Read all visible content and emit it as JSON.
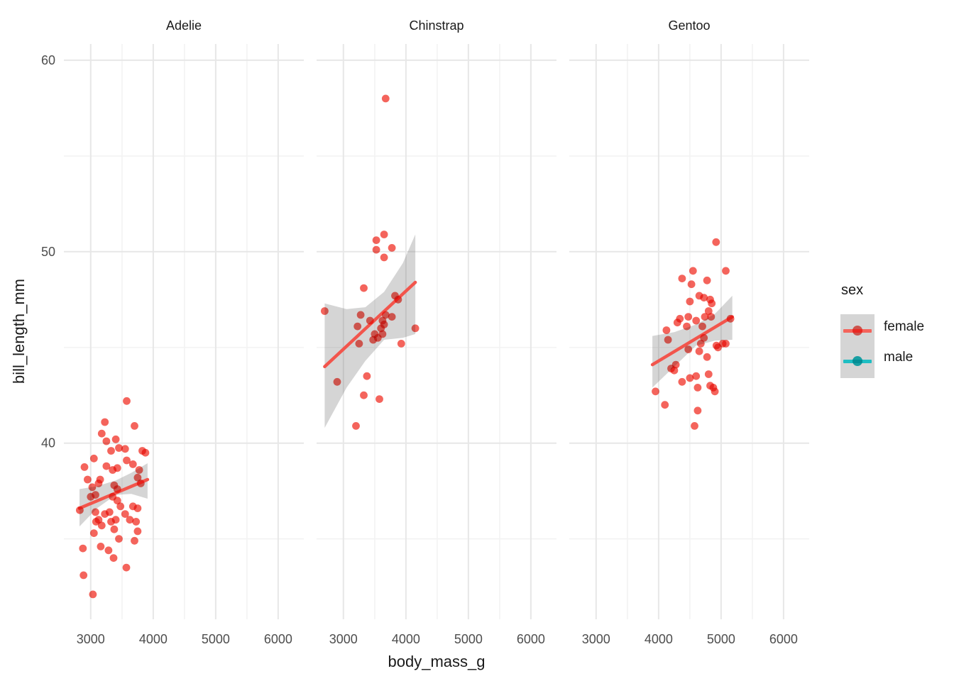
{
  "chart_data": {
    "type": "scatter",
    "title": "",
    "xlabel": "body_mass_g",
    "ylabel": "bill_length_mm",
    "x_ticks": [
      3000,
      4000,
      5000,
      6000
    ],
    "x_minor": [
      3500,
      4500,
      5500
    ],
    "y_ticks": [
      40,
      50,
      60
    ],
    "y_minor": [
      35,
      45,
      55
    ],
    "x_domain": [
      2570,
      6410
    ],
    "y_domain": [
      30.8,
      60.85
    ],
    "grid": true,
    "legend": {
      "title": "sex",
      "position": "right",
      "entries": [
        {
          "label": "female",
          "color": "#F4645C"
        },
        {
          "label": "male",
          "color": "#1FBEC3"
        }
      ]
    },
    "colors": {
      "female": "#F4645C",
      "male": "#1FBEC3",
      "regression_line": "#F2554C",
      "ribbon": "rgba(105,105,105,0.28)",
      "grid_major": "#E7E7E7",
      "grid_minor": "#F3F3F3",
      "tick_text": "#4D4D4D",
      "title_text": "#1A1A1A",
      "legend_key_bg": "#D5D5D5"
    },
    "series_shown": "female only (points and smoothing line drawn for female penguins)",
    "facets": [
      {
        "label": "Adelie",
        "points": [
          [
            3575,
            42.2
          ],
          [
            3225,
            41.1
          ],
          [
            3700,
            40.9
          ],
          [
            3175,
            40.5
          ],
          [
            3250,
            40.1
          ],
          [
            3400,
            40.2
          ],
          [
            3450,
            39.75
          ],
          [
            3325,
            39.6
          ],
          [
            3550,
            39.7
          ],
          [
            3825,
            39.6
          ],
          [
            3875,
            39.5
          ],
          [
            3050,
            39.2
          ],
          [
            3575,
            39.1
          ],
          [
            3675,
            38.9
          ],
          [
            2900,
            38.75
          ],
          [
            3250,
            38.8
          ],
          [
            3350,
            38.6
          ],
          [
            3425,
            38.7
          ],
          [
            3775,
            38.6
          ],
          [
            2950,
            38.1
          ],
          [
            3150,
            38.1
          ],
          [
            3125,
            37.9
          ],
          [
            3375,
            37.8
          ],
          [
            3750,
            38.2
          ],
          [
            3800,
            37.9
          ],
          [
            3025,
            37.7
          ],
          [
            3425,
            37.6
          ],
          [
            3075,
            37.3
          ],
          [
            3000,
            37.2
          ],
          [
            3350,
            37.2
          ],
          [
            3425,
            37.0
          ],
          [
            2825,
            36.5
          ],
          [
            3075,
            36.4
          ],
          [
            3125,
            36.0
          ],
          [
            3225,
            36.3
          ],
          [
            3300,
            36.4
          ],
          [
            3475,
            36.7
          ],
          [
            3550,
            36.3
          ],
          [
            3675,
            36.7
          ],
          [
            3750,
            36.6
          ],
          [
            3085,
            35.9
          ],
          [
            3175,
            35.7
          ],
          [
            3325,
            35.9
          ],
          [
            3400,
            36.0
          ],
          [
            3625,
            36.0
          ],
          [
            3725,
            35.9
          ],
          [
            3050,
            35.3
          ],
          [
            3375,
            35.5
          ],
          [
            3750,
            35.4
          ],
          [
            3450,
            35.0
          ],
          [
            3700,
            34.9
          ],
          [
            2875,
            34.5
          ],
          [
            3160,
            34.6
          ],
          [
            3285,
            34.4
          ],
          [
            3365,
            34.0
          ],
          [
            3570,
            33.5
          ],
          [
            2885,
            33.1
          ],
          [
            3035,
            32.1
          ]
        ],
        "regression": {
          "x": [
            2820,
            3910
          ],
          "y": [
            36.6,
            38.1
          ]
        },
        "ribbon": {
          "upper": [
            [
              2820,
              37.6
            ],
            [
              3100,
              37.75
            ],
            [
              3400,
              38.05
            ],
            [
              3650,
              38.45
            ],
            [
              3910,
              38.95
            ]
          ],
          "lower": [
            [
              2820,
              35.65
            ],
            [
              3100,
              36.6
            ],
            [
              3400,
              37.3
            ],
            [
              3650,
              37.35
            ],
            [
              3910,
              37.1
            ]
          ]
        }
      },
      {
        "label": "Chinstrap",
        "points": [
          [
            3675,
            58.0
          ],
          [
            3650,
            50.9
          ],
          [
            3525,
            50.6
          ],
          [
            3525,
            50.1
          ],
          [
            3775,
            50.2
          ],
          [
            3650,
            49.7
          ],
          [
            3325,
            48.1
          ],
          [
            2700,
            46.9
          ],
          [
            3825,
            47.7
          ],
          [
            3875,
            47.5
          ],
          [
            3275,
            46.7
          ],
          [
            3425,
            46.4
          ],
          [
            3675,
            46.7
          ],
          [
            3775,
            46.6
          ],
          [
            3625,
            46.4
          ],
          [
            3650,
            46.2
          ],
          [
            3225,
            46.1
          ],
          [
            3600,
            46.0
          ],
          [
            3500,
            45.7
          ],
          [
            3625,
            45.7
          ],
          [
            3550,
            45.5
          ],
          [
            3475,
            45.4
          ],
          [
            4150,
            46.0
          ],
          [
            3925,
            45.2
          ],
          [
            3250,
            45.2
          ],
          [
            2900,
            43.2
          ],
          [
            3375,
            43.5
          ],
          [
            3325,
            42.5
          ],
          [
            3575,
            42.3
          ],
          [
            3200,
            40.9
          ]
        ],
        "regression": {
          "x": [
            2700,
            4150
          ],
          "y": [
            44.0,
            48.4
          ]
        },
        "ribbon": {
          "upper": [
            [
              2700,
              47.3
            ],
            [
              3050,
              47.0
            ],
            [
              3350,
              47.1
            ],
            [
              3650,
              47.9
            ],
            [
              3950,
              49.4
            ],
            [
              4150,
              50.9
            ]
          ],
          "lower": [
            [
              2700,
              40.8
            ],
            [
              3050,
              42.9
            ],
            [
              3350,
              44.3
            ],
            [
              3650,
              45.4
            ],
            [
              3950,
              45.5
            ],
            [
              4150,
              45.7
            ]
          ]
        }
      },
      {
        "label": "Gentoo",
        "points": [
          [
            4920,
            50.5
          ],
          [
            4550,
            49.0
          ],
          [
            5075,
            49.0
          ],
          [
            4375,
            48.6
          ],
          [
            4775,
            48.5
          ],
          [
            4525,
            48.3
          ],
          [
            4650,
            47.7
          ],
          [
            4725,
            47.6
          ],
          [
            4825,
            47.5
          ],
          [
            4850,
            47.3
          ],
          [
            4500,
            47.4
          ],
          [
            4800,
            46.9
          ],
          [
            4340,
            46.5
          ],
          [
            4475,
            46.6
          ],
          [
            4600,
            46.4
          ],
          [
            4740,
            46.6
          ],
          [
            4840,
            46.6
          ],
          [
            4125,
            45.9
          ],
          [
            4300,
            46.3
          ],
          [
            4450,
            46.1
          ],
          [
            4700,
            46.1
          ],
          [
            5150,
            46.5
          ],
          [
            4725,
            45.5
          ],
          [
            4675,
            45.2
          ],
          [
            4925,
            45.1
          ],
          [
            5025,
            45.2
          ],
          [
            4150,
            45.4
          ],
          [
            4775,
            44.5
          ],
          [
            4650,
            44.8
          ],
          [
            4950,
            45.0
          ],
          [
            5075,
            45.2
          ],
          [
            4250,
            43.8
          ],
          [
            4275,
            44.1
          ],
          [
            4375,
            43.2
          ],
          [
            4500,
            43.4
          ],
          [
            4600,
            43.5
          ],
          [
            4625,
            42.9
          ],
          [
            4800,
            43.6
          ],
          [
            4825,
            43.0
          ],
          [
            4875,
            42.9
          ],
          [
            4900,
            42.7
          ],
          [
            3950,
            42.7
          ],
          [
            4100,
            42.0
          ],
          [
            4625,
            41.7
          ],
          [
            4575,
            40.9
          ],
          [
            4200,
            43.9
          ],
          [
            4475,
            44.9
          ]
        ],
        "regression": {
          "x": [
            3900,
            5180
          ],
          "y": [
            44.1,
            46.6
          ]
        },
        "ribbon": {
          "upper": [
            [
              3900,
              45.6
            ],
            [
              4250,
              45.8
            ],
            [
              4600,
              46.2
            ],
            [
              4900,
              46.75
            ],
            [
              5180,
              47.7
            ]
          ],
          "lower": [
            [
              3900,
              42.9
            ],
            [
              4250,
              44.0
            ],
            [
              4600,
              45.1
            ],
            [
              4900,
              45.35
            ],
            [
              5180,
              45.4
            ]
          ]
        }
      }
    ]
  }
}
